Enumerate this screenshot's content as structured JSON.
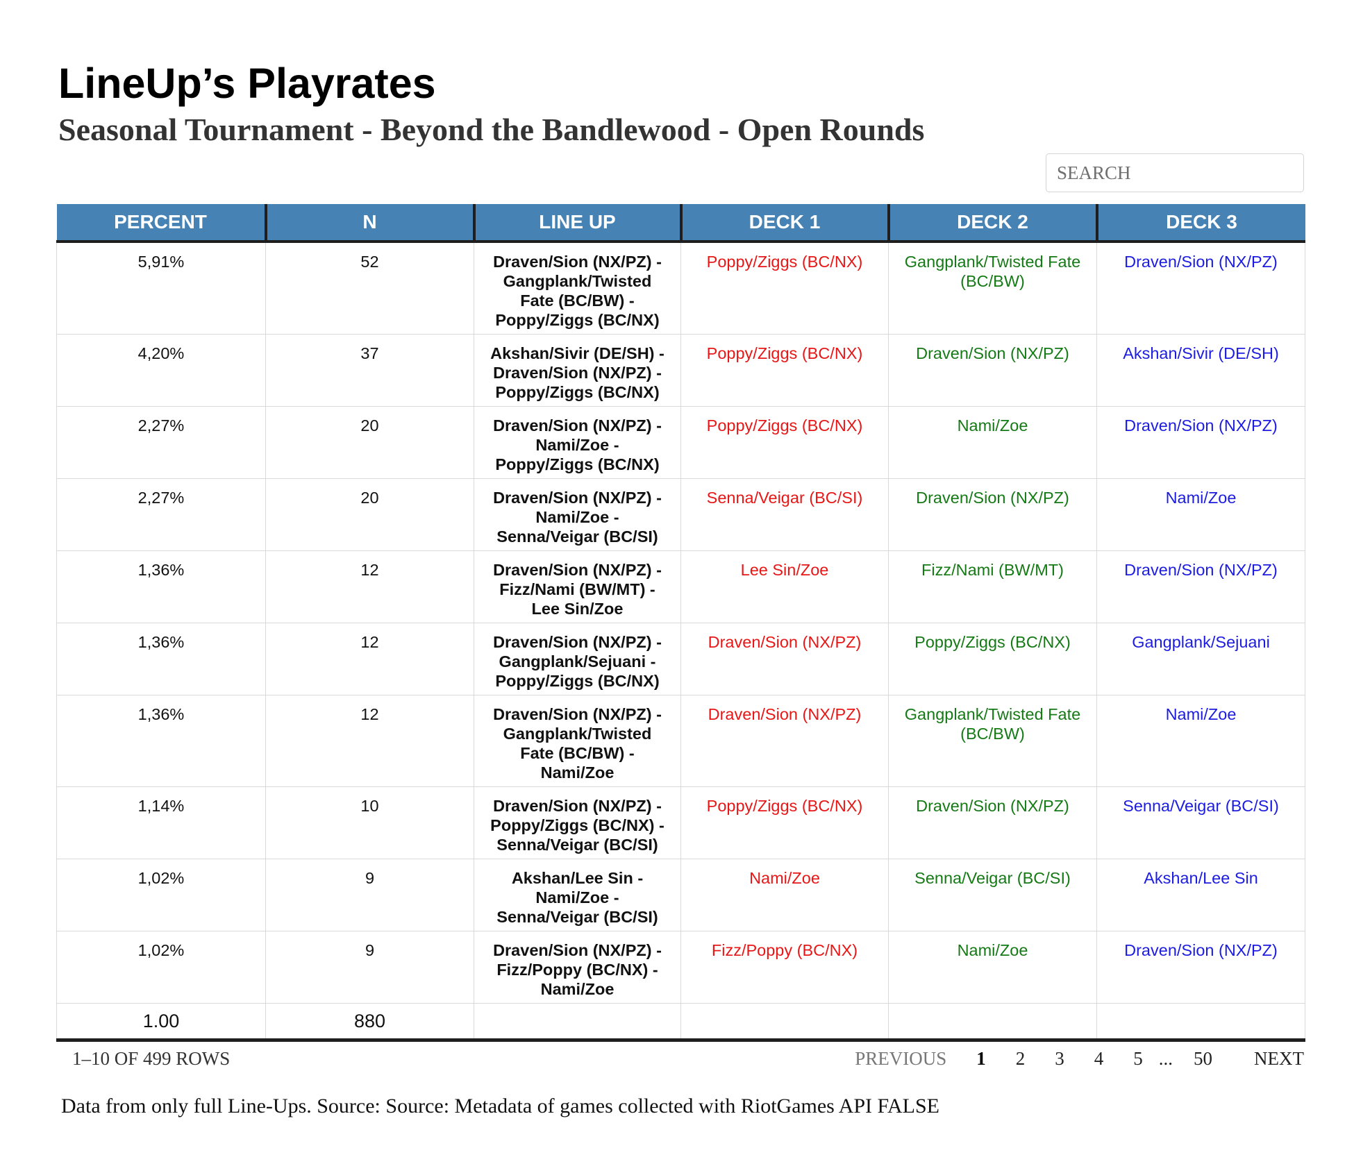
{
  "title": "LineUp’s Playrates",
  "subtitle": "Seasonal Tournament - Beyond the Bandlewood - Open Rounds",
  "search": {
    "placeholder": "SEARCH",
    "value": ""
  },
  "table": {
    "columns": [
      "PERCENT",
      "N",
      "LINE UP",
      "DECK 1",
      "DECK 2",
      "DECK 3"
    ],
    "rows": [
      {
        "percent": "5,91%",
        "n": "52",
        "lineup": "Draven/Sion (NX/PZ) - Gangplank/Twisted Fate (BC/BW) - Poppy/Ziggs (BC/NX)",
        "deck1": "Poppy/Ziggs (BC/NX)",
        "deck2": "Gangplank/Twisted Fate (BC/BW)",
        "deck3": "Draven/Sion (NX/PZ)"
      },
      {
        "percent": "4,20%",
        "n": "37",
        "lineup": "Akshan/Sivir (DE/SH) - Draven/Sion (NX/PZ) - Poppy/Ziggs (BC/NX)",
        "deck1": "Poppy/Ziggs (BC/NX)",
        "deck2": "Draven/Sion (NX/PZ)",
        "deck3": "Akshan/Sivir (DE/SH)"
      },
      {
        "percent": "2,27%",
        "n": "20",
        "lineup": "Draven/Sion (NX/PZ) - Nami/Zoe - Poppy/Ziggs (BC/NX)",
        "deck1": "Poppy/Ziggs (BC/NX)",
        "deck2": "Nami/Zoe",
        "deck3": "Draven/Sion (NX/PZ)"
      },
      {
        "percent": "2,27%",
        "n": "20",
        "lineup": "Draven/Sion (NX/PZ) - Nami/Zoe - Senna/Veigar (BC/SI)",
        "deck1": "Senna/Veigar (BC/SI)",
        "deck2": "Draven/Sion (NX/PZ)",
        "deck3": "Nami/Zoe"
      },
      {
        "percent": "1,36%",
        "n": "12",
        "lineup": "Draven/Sion (NX/PZ) - Fizz/Nami (BW/MT) - Lee Sin/Zoe",
        "deck1": "Lee Sin/Zoe",
        "deck2": "Fizz/Nami (BW/MT)",
        "deck3": "Draven/Sion (NX/PZ)"
      },
      {
        "percent": "1,36%",
        "n": "12",
        "lineup": "Draven/Sion (NX/PZ) - Gangplank/Sejuani - Poppy/Ziggs (BC/NX)",
        "deck1": "Draven/Sion (NX/PZ)",
        "deck2": "Poppy/Ziggs (BC/NX)",
        "deck3": "Gangplank/Sejuani"
      },
      {
        "percent": "1,36%",
        "n": "12",
        "lineup": "Draven/Sion (NX/PZ) - Gangplank/Twisted Fate (BC/BW) - Nami/Zoe",
        "deck1": "Draven/Sion (NX/PZ)",
        "deck2": "Gangplank/Twisted Fate (BC/BW)",
        "deck3": "Nami/Zoe"
      },
      {
        "percent": "1,14%",
        "n": "10",
        "lineup": "Draven/Sion (NX/PZ) - Poppy/Ziggs (BC/NX) - Senna/Veigar (BC/SI)",
        "deck1": "Poppy/Ziggs (BC/NX)",
        "deck2": "Draven/Sion (NX/PZ)",
        "deck3": "Senna/Veigar (BC/SI)"
      },
      {
        "percent": "1,02%",
        "n": "9",
        "lineup": "Akshan/Lee Sin - Nami/Zoe - Senna/Veigar (BC/SI)",
        "deck1": "Nami/Zoe",
        "deck2": "Senna/Veigar (BC/SI)",
        "deck3": "Akshan/Lee Sin"
      },
      {
        "percent": "1,02%",
        "n": "9",
        "lineup": "Draven/Sion (NX/PZ) - Fizz/Poppy (BC/NX) - Nami/Zoe",
        "deck1": "Fizz/Poppy (BC/NX)",
        "deck2": "Nami/Zoe",
        "deck3": "Draven/Sion (NX/PZ)"
      }
    ],
    "totals": {
      "percent": "1.00",
      "n": "880"
    }
  },
  "pagination": {
    "summary": "1–10 OF 499 ROWS",
    "previous_label": "PREVIOUS",
    "pages": [
      "1",
      "2",
      "3",
      "4",
      "5"
    ],
    "ellipsis": "...",
    "last_page": "50",
    "next_label": "NEXT",
    "current_page": "1"
  },
  "footnote": "Data from only full Line-Ups. Source: Source: Metadata of games collected with RiotGames API FALSE",
  "colors": {
    "header_bg": "#4682b4",
    "deck1_text": "#e81717",
    "deck2_text": "#157a15",
    "deck3_text": "#1c1ce0"
  }
}
